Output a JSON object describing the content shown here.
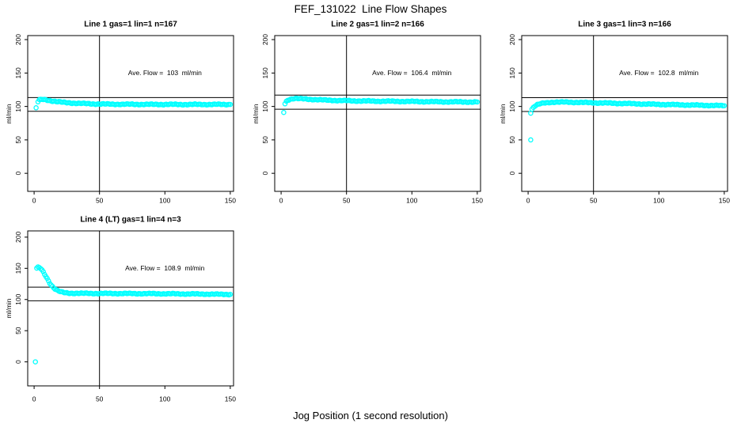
{
  "figure": {
    "title": "FEF_131022  Line Flow Shapes",
    "xlabel": "Jog Position (1 second resolution)",
    "background_color": "#ffffff",
    "axis_color": "#000000",
    "point_color": "#00ffff"
  },
  "chart_data": [
    {
      "type": "scatter",
      "title": "Line 1 gas=1 lin=1 n=167",
      "n": 167,
      "ylabel": "ml/min",
      "annotation": "Ave. Flow =  103  ml/min",
      "ave_flow": 103,
      "annotation_pos": {
        "x": 100,
        "y": 150
      },
      "x_ticks": [
        0,
        50,
        100,
        150
      ],
      "y_ticks": [
        0,
        50,
        100,
        150,
        200
      ],
      "vline_x": 50,
      "hlines": [
        113.3,
        92.7
      ],
      "outliers": [
        [
          1.5,
          98
        ]
      ],
      "curve": [
        [
          3,
          107
        ],
        [
          4,
          109.5
        ],
        [
          6,
          110.5
        ],
        [
          9,
          110
        ],
        [
          13,
          108.5
        ],
        [
          18,
          107
        ],
        [
          24,
          105.8
        ],
        [
          30,
          105
        ],
        [
          38,
          104.3
        ],
        [
          50,
          103.6
        ],
        [
          65,
          103.3
        ],
        [
          85,
          103.1
        ],
        [
          110,
          103
        ],
        [
          150,
          103
        ]
      ]
    },
    {
      "type": "scatter",
      "title": "Line 2 gas=1 lin=2 n=166",
      "n": 166,
      "ylabel": "ml/min",
      "annotation": "Ave. Flow =  106.4  ml/min",
      "ave_flow": 106.4,
      "annotation_pos": {
        "x": 100,
        "y": 150
      },
      "x_ticks": [
        0,
        50,
        100,
        150
      ],
      "y_ticks": [
        0,
        50,
        100,
        150,
        200
      ],
      "vline_x": 50,
      "hlines": [
        117.0,
        95.8
      ],
      "outliers": [
        [
          2,
          91
        ]
      ],
      "curve": [
        [
          3,
          104
        ],
        [
          4,
          107.5
        ],
        [
          5,
          109.5
        ],
        [
          7,
          111
        ],
        [
          10,
          112
        ],
        [
          14,
          111.6
        ],
        [
          20,
          110.9
        ],
        [
          27,
          110.2
        ],
        [
          35,
          109.4
        ],
        [
          45,
          108.8
        ],
        [
          55,
          108.4
        ],
        [
          70,
          108
        ],
        [
          85,
          107.7
        ],
        [
          100,
          107.4
        ],
        [
          120,
          107
        ],
        [
          135,
          106.8
        ],
        [
          150,
          106.6
        ]
      ]
    },
    {
      "type": "scatter",
      "title": "Line 3 gas=1 lin=3 n=166",
      "n": 166,
      "ylabel": "ml/min",
      "annotation": "Ave. Flow =  102.8  ml/min",
      "ave_flow": 102.8,
      "annotation_pos": {
        "x": 100,
        "y": 150
      },
      "x_ticks": [
        0,
        50,
        100,
        150
      ],
      "y_ticks": [
        0,
        50,
        100,
        150,
        200
      ],
      "vline_x": 50,
      "hlines": [
        113.1,
        92.5
      ],
      "outliers": [
        [
          2,
          90
        ],
        [
          2,
          50
        ]
      ],
      "curve": [
        [
          3,
          96
        ],
        [
          4,
          98.5
        ],
        [
          5,
          100.5
        ],
        [
          7,
          102.5
        ],
        [
          9,
          103.8
        ],
        [
          12,
          105
        ],
        [
          16,
          106
        ],
        [
          20,
          106.5
        ],
        [
          28,
          106.5
        ],
        [
          38,
          106.1
        ],
        [
          50,
          105.5
        ],
        [
          62,
          105
        ],
        [
          78,
          104.2
        ],
        [
          95,
          103.3
        ],
        [
          110,
          102.7
        ],
        [
          125,
          102.1
        ],
        [
          140,
          101.5
        ],
        [
          150,
          101.1
        ]
      ]
    },
    {
      "type": "scatter",
      "title": "Line 4 (LT) gas=1 lin=4 n=3",
      "n": 3,
      "ylabel": "ml/min",
      "annotation": "Ave. Flow =  108.9  ml/min",
      "ave_flow": 108.9,
      "annotation_pos": {
        "x": 100,
        "y": 150
      },
      "x_ticks": [
        0,
        50,
        100,
        150
      ],
      "y_ticks": [
        0,
        50,
        100,
        150,
        200
      ],
      "vline_x": 50,
      "hlines": [
        119.8,
        98.0
      ],
      "outliers": [
        [
          1,
          0
        ]
      ],
      "curve": [
        [
          2,
          150
        ],
        [
          3,
          151.5
        ],
        [
          4,
          151
        ],
        [
          5,
          149.5
        ],
        [
          6,
          147
        ],
        [
          7,
          144
        ],
        [
          8,
          140.5
        ],
        [
          9,
          137
        ],
        [
          10,
          133.5
        ],
        [
          11,
          130
        ],
        [
          12,
          126.5
        ],
        [
          13,
          123.5
        ],
        [
          14,
          121
        ],
        [
          15,
          118.8
        ],
        [
          16,
          117
        ],
        [
          17,
          115.5
        ],
        [
          18,
          114.2
        ],
        [
          20,
          112.5
        ],
        [
          22,
          111.4
        ],
        [
          24,
          110.7
        ],
        [
          27,
          110.2
        ],
        [
          30,
          110
        ],
        [
          40,
          109.8
        ],
        [
          55,
          109.7
        ],
        [
          75,
          109.5
        ],
        [
          95,
          109.3
        ],
        [
          115,
          109
        ],
        [
          135,
          108.6
        ],
        [
          150,
          108.2
        ]
      ]
    }
  ]
}
